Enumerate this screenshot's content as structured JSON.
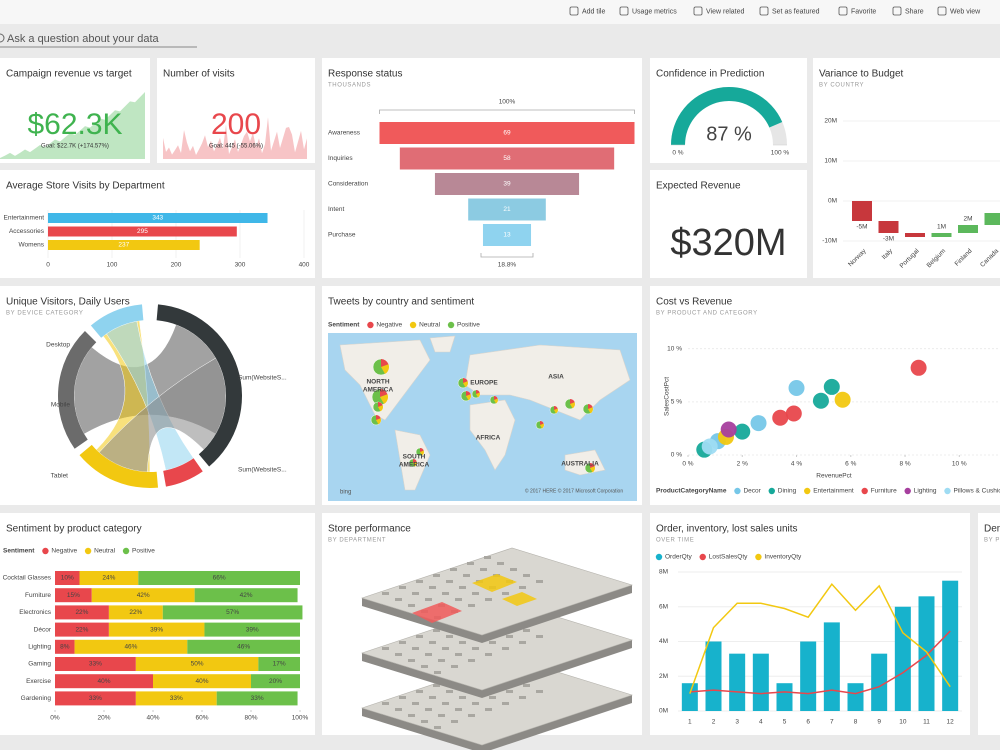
{
  "toolbar": {
    "items": [
      "Add tile",
      "Usage metrics",
      "View related",
      "Set as featured",
      "Favorite",
      "Share",
      "Web view"
    ]
  },
  "qna": {
    "placeholder": "Ask a question about your data"
  },
  "tiles": [
    {
      "title": "Campaign revenue vs target",
      "kpi": "$62.3K",
      "goal": "Goal: $22.7K (+174.57%)",
      "color": "#3fb34f"
    },
    {
      "title": "Number of visits",
      "kpi": "200",
      "goal": "Goal: 445 (-55.06%)",
      "color": "#e8474c"
    },
    {
      "title": "Response status",
      "subtitle": "THOUSANDS",
      "chart": {
        "type": "funnel",
        "categories": [
          "Awareness",
          "Inquiries",
          "Consideration",
          "Intent",
          "Purchase"
        ],
        "values": [
          69,
          58,
          39,
          21,
          13
        ],
        "colors": [
          "#f05a5b",
          "#e06d75",
          "#b88896",
          "#8ccbe2",
          "#8fd3ef"
        ],
        "top_label": "100%",
        "bottom_label": "18.8%"
      }
    },
    {
      "title": "Confidence in Prediction",
      "chart": {
        "type": "gauge",
        "value": 87,
        "value_label": "87 %",
        "range": [
          0,
          100
        ],
        "range_labels": [
          "0 %",
          "100 %"
        ],
        "color": "#16a99a"
      }
    },
    {
      "title": "Variance to Budget",
      "subtitle": "BY COUNTRY",
      "chart": {
        "type": "waterfall",
        "categories": [
          "Norway",
          "Italy",
          "Portugal",
          "Belgium",
          "Finland",
          "Canada"
        ],
        "values": [
          -5000000,
          -3000000,
          -1000000,
          1000000,
          2000000,
          3000000
        ],
        "value_labels": [
          "-5M",
          "-3M",
          null,
          "1M",
          "2M",
          null
        ],
        "ylim": [
          -10000000,
          20000000
        ],
        "yticks": [
          {
            "value": -10000000,
            "label": "-10M"
          },
          {
            "value": 0,
            "label": "0M"
          },
          {
            "value": 10000000,
            "label": "10M"
          },
          {
            "value": 20000000,
            "label": "20M"
          }
        ],
        "negative_color": "#c7373c",
        "positive_color": "#5cb85c"
      }
    },
    {
      "title": "Average Store Visits by Department",
      "chart": {
        "type": "hbar",
        "categories": [
          "Entertainment",
          "Accessories",
          "Womens"
        ],
        "values": [
          343,
          295,
          237
        ],
        "colors": [
          "#3fb7e8",
          "#e8474c",
          "#f2c811"
        ],
        "xlim": [
          0,
          400
        ],
        "xticks": [
          0,
          100,
          200,
          300,
          400
        ]
      }
    },
    {
      "title": "Expected Revenue",
      "kpi": "$320M",
      "color": "#333333"
    },
    {
      "title": "Unique Visitors, Daily Users",
      "subtitle": "BY DEVICE CATEGORY",
      "chord": {
        "labels": [
          "Desktop",
          "Mobile",
          "Tablet",
          "Sum(WebsiteS...",
          "Sum(WebsiteS..."
        ]
      }
    },
    {
      "title": "Tweets by country and sentiment",
      "map": {
        "legend_title": "Sentiment",
        "legend": [
          {
            "name": "Negative",
            "color": "#e8474c"
          },
          {
            "name": "Neutral",
            "color": "#f2c811"
          },
          {
            "name": "Positive",
            "color": "#6cc04a"
          }
        ],
        "regions": [
          [
            "NORTH",
            "AMERICA"
          ],
          [
            "EUROPE"
          ],
          [
            "ASIA"
          ],
          [
            "AFRICA"
          ],
          [
            "SOUTH",
            "AMERICA"
          ],
          [
            "AUSTRALIA"
          ]
        ],
        "attribution": "© 2017 HERE © 2017 Microsoft Corporation",
        "logo": "bing"
      }
    },
    {
      "title": "Cost vs Revenue",
      "subtitle": "BY PRODUCT AND CATEGORY",
      "chart": {
        "type": "scatter",
        "x_label": "RevenuePct",
        "y_label": "SalesCostPct",
        "legend_title": "ProductCategoryName",
        "xlim": [
          0,
          11.5
        ],
        "ylim": [
          0,
          11
        ],
        "xticks": [
          {
            "value": 0,
            "label": "0 %"
          },
          {
            "value": 2,
            "label": "2 %"
          },
          {
            "value": 4,
            "label": "4 %"
          },
          {
            "value": 6,
            "label": "6 %"
          },
          {
            "value": 8,
            "label": "8 %"
          },
          {
            "value": 10,
            "label": "10 %"
          }
        ],
        "yticks": [
          {
            "value": 0,
            "label": "0 %"
          },
          {
            "value": 5,
            "label": "5 %"
          },
          {
            "value": 10,
            "label": "10 %"
          }
        ],
        "series": [
          {
            "name": "Decor",
            "color": "#76c7e8",
            "x": [
              4.0,
              2.6,
              1.1
            ],
            "values": [
              6.3,
              3.0,
              1.3
            ]
          },
          {
            "name": "Dining",
            "color": "#16a99a",
            "x": [
              5.3,
              4.9,
              2.0,
              0.6
            ],
            "values": [
              6.4,
              5.1,
              2.2,
              0.5
            ]
          },
          {
            "name": "Entertainment",
            "color": "#f2c811",
            "x": [
              5.7,
              1.4
            ],
            "values": [
              5.2,
              1.7
            ]
          },
          {
            "name": "Furniture",
            "color": "#e8474c",
            "x": [
              8.5,
              3.9,
              3.4
            ],
            "values": [
              8.2,
              3.9,
              3.5
            ]
          },
          {
            "name": "Lighting",
            "color": "#a63f9e",
            "x": [
              1.5
            ],
            "values": [
              2.4
            ]
          },
          {
            "name": "Pillows & Cushions",
            "color": "#9fdcf3",
            "x": [
              0.8
            ],
            "values": [
              0.8
            ]
          }
        ]
      }
    },
    {
      "title": "Sentiment by product category",
      "chart": {
        "type": "stacked100",
        "legend_title": "Sentiment",
        "categories": [
          "Cocktail Glasses",
          "Furniture",
          "Electronics",
          "Décor",
          "Lighting",
          "Gaming",
          "Exercise",
          "Gardening"
        ],
        "series": [
          {
            "name": "Negative",
            "color": "#e8474c",
            "values": [
              10,
              15,
              22,
              22,
              8,
              33,
              40,
              33
            ],
            "value_labels": [
              "10%",
              "15%",
              "22%",
              "22%",
              "8%",
              "33%",
              "40%",
              "33%"
            ]
          },
          {
            "name": "Neutral",
            "color": "#f2c811",
            "values": [
              24,
              42,
              22,
              39,
              46,
              50,
              40,
              33
            ],
            "value_labels": [
              "24%",
              "42%",
              "22%",
              "39%",
              "46%",
              "50%",
              "40%",
              "33%"
            ]
          },
          {
            "name": "Positive",
            "color": "#6cc04a",
            "values": [
              66,
              42,
              57,
              39,
              46,
              17,
              20,
              33
            ],
            "value_labels": [
              "66%",
              "42%",
              "57%",
              "39%",
              "46%",
              "17%",
              "20%",
              "33%"
            ]
          }
        ],
        "xlim": [
          0,
          100
        ],
        "xticks": [
          {
            "value": 0,
            "label": "0%"
          },
          {
            "value": 20,
            "label": "20%"
          },
          {
            "value": 40,
            "label": "40%"
          },
          {
            "value": 60,
            "label": "60%"
          },
          {
            "value": 80,
            "label": "80%"
          },
          {
            "value": 100,
            "label": "100%"
          }
        ]
      }
    },
    {
      "title": "Store performance",
      "subtitle": "BY DEPARTMENT"
    },
    {
      "title": "Order, inventory, lost sales units",
      "subtitle": "OVER TIME",
      "chart": {
        "type": "combo",
        "x": [
          1,
          2,
          3,
          4,
          5,
          6,
          7,
          8,
          9,
          10,
          11,
          12
        ],
        "xlim": [
          0.5,
          12.5
        ],
        "ylim": [
          0,
          8000000
        ],
        "yticks": [
          {
            "value": 0,
            "label": "0M"
          },
          {
            "value": 2000000,
            "label": "2M"
          },
          {
            "value": 4000000,
            "label": "4M"
          },
          {
            "value": 6000000,
            "label": "6M"
          },
          {
            "value": 8000000,
            "label": "8M"
          }
        ],
        "series": [
          {
            "name": "OrderQty",
            "color": "#17b2cc",
            "mark": "bar",
            "values": [
              1600000,
              4000000,
              3300000,
              3300000,
              1600000,
              4000000,
              5100000,
              1600000,
              3300000,
              6000000,
              6600000,
              7500000
            ]
          },
          {
            "name": "LostSalesQty",
            "color": "#e8474c",
            "mark": "line",
            "values": [
              1100000,
              1200000,
              1100000,
              1000000,
              1100000,
              1000000,
              1200000,
              1000000,
              1400000,
              2200000,
              3200000,
              4600000
            ]
          },
          {
            "name": "InventoryQty",
            "color": "#f2c811",
            "mark": "line",
            "values": [
              1000000,
              4800000,
              6200000,
              6200000,
              5900000,
              5400000,
              7300000,
              5800000,
              7200000,
              4500000,
              3400000,
              1400000
            ]
          }
        ]
      }
    },
    {
      "title": "Den",
      "subtitle": "BY P"
    }
  ]
}
